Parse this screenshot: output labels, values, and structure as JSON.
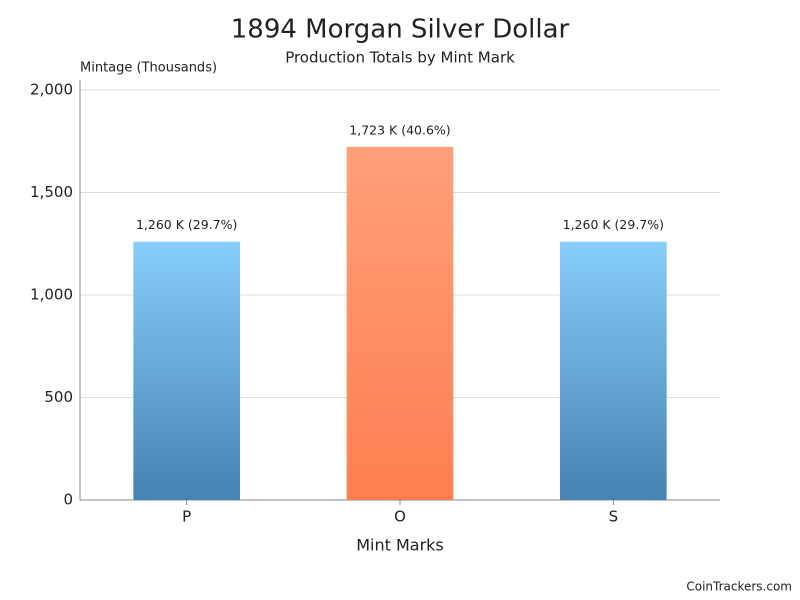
{
  "chart_data": {
    "type": "bar",
    "title": "1894 Morgan Silver Dollar",
    "subtitle": "Production Totals by Mint Mark",
    "y_axis_label": "Mintage (Thousands)",
    "x_axis_label": "Mint Marks",
    "categories": [
      "P",
      "O",
      "S"
    ],
    "values": [
      1260,
      1723,
      1260
    ],
    "value_labels": [
      "1,260 K (29.7%)",
      "1,723 K (40.6%)",
      "1,260 K (29.7%)"
    ],
    "bar_colors": [
      {
        "top": "#87cefa",
        "bottom": "#4682b4"
      },
      {
        "top": "#ffa07a",
        "bottom": "#ff7f50"
      },
      {
        "top": "#87cefa",
        "bottom": "#4682b4"
      }
    ],
    "ylim": [
      0,
      2000
    ],
    "yticks": [
      0,
      500,
      {
        "value": 1000,
        "label": "1,000"
      },
      {
        "value": 1500,
        "label": "1,500"
      },
      {
        "value": 2000,
        "label": "2,000"
      }
    ],
    "grid": true,
    "footer": "CoinTrackers.com"
  }
}
